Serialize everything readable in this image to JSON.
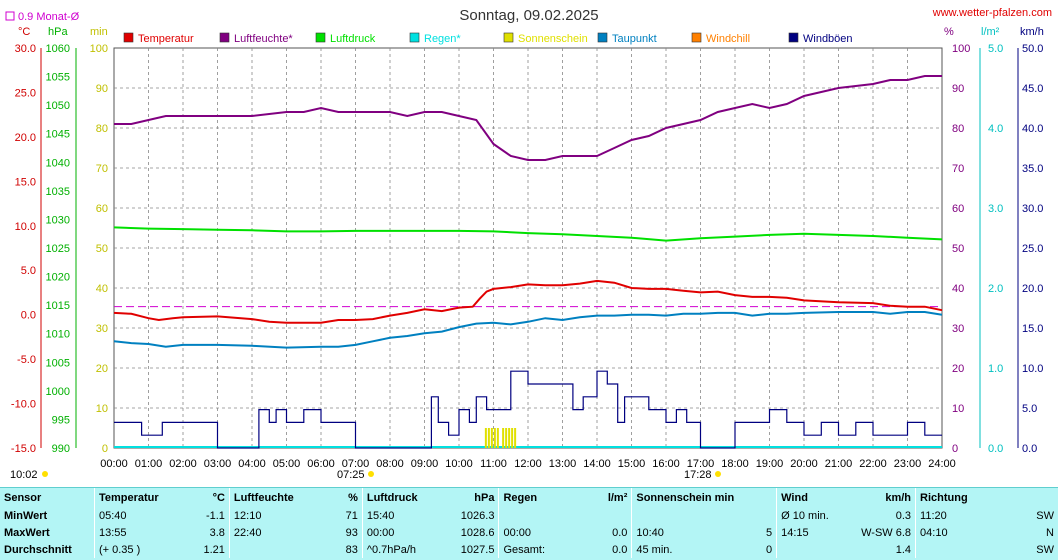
{
  "header": {
    "title": "Sonntag, 09.02.2025",
    "site": "www.wetter-pfalzen.com",
    "avg_marker": "0.9 Monat-Ø"
  },
  "axes": {
    "units": {
      "temp": "°C",
      "press": "hPa",
      "min": "min",
      "pct": "%",
      "rain": "l/m²",
      "wind": "km/h"
    },
    "temp_ticks": [
      "30.0",
      "25.0",
      "20.0",
      "15.0",
      "10.0",
      "5.0",
      "0.0",
      "-5.0",
      "-10.0",
      "-15.0"
    ],
    "press_ticks": [
      "1060",
      "1055",
      "1050",
      "1045",
      "1040",
      "1035",
      "1030",
      "1025",
      "1020",
      "1015",
      "1010",
      "1005",
      "1000",
      "995",
      "990"
    ],
    "min_ticks": [
      "100",
      "90",
      "80",
      "70",
      "60",
      "50",
      "40",
      "30",
      "20",
      "10",
      "0"
    ],
    "pct_ticks": [
      "100",
      "90",
      "80",
      "70",
      "60",
      "50",
      "40",
      "30",
      "20",
      "10",
      "0"
    ],
    "rain_ticks": [
      "5.0",
      "4.0",
      "3.0",
      "2.0",
      "1.0",
      "0.0"
    ],
    "wind_ticks": [
      "50.0",
      "45.0",
      "40.0",
      "35.0",
      "30.0",
      "25.0",
      "20.0",
      "15.0",
      "10.0",
      "5.0",
      "0.0"
    ],
    "x_ticks": [
      "00:00",
      "01:00",
      "02:00",
      "03:00",
      "04:00",
      "05:00",
      "06:00",
      "07:00",
      "08:00",
      "09:00",
      "10:00",
      "11:00",
      "12:00",
      "13:00",
      "14:00",
      "15:00",
      "16:00",
      "17:00",
      "18:00",
      "19:00",
      "20:00",
      "21:00",
      "22:00",
      "23:00",
      "24:00"
    ]
  },
  "legend": [
    {
      "label": "Temperatur",
      "color": "#e00000"
    },
    {
      "label": "Luftfeuchte*",
      "color": "#800080"
    },
    {
      "label": "Luftdruck",
      "color": "#00e000"
    },
    {
      "label": "Regen*",
      "color": "#00e0e0"
    },
    {
      "label": "Sonnenschein",
      "color": "#e0e000"
    },
    {
      "label": "Taupunkt",
      "color": "#0080c0"
    },
    {
      "label": "Windchill",
      "color": "#ff8000"
    },
    {
      "label": "Windböen",
      "color": "#000080"
    }
  ],
  "sun_markers": {
    "moon_time": "10:02",
    "sunrise": "07:25",
    "sunset": "17:28"
  },
  "chart_data": {
    "type": "line",
    "title": "Sonntag, 09.02.2025",
    "x_unit": "hour of day",
    "xlim": [
      0,
      24
    ],
    "temp_ylim": [
      -15,
      30
    ],
    "pct_ylim": [
      0,
      100
    ],
    "month_avg_temp": 0.9,
    "series": [
      {
        "name": "Temperatur",
        "axis": "°C",
        "x": [
          0,
          0.5,
          1,
          1.3,
          1.7,
          2,
          3,
          4,
          4.5,
          5,
          6,
          6.5,
          7,
          7.5,
          8,
          8.5,
          9,
          9.5,
          10,
          10.4,
          10.6,
          10.8,
          11,
          11.5,
          12,
          12.5,
          13,
          13.5,
          14,
          14.5,
          15,
          15.5,
          16,
          16.5,
          17,
          17.5,
          18,
          18.5,
          19,
          19.5,
          20,
          21,
          22,
          22.5,
          23,
          23.5,
          24
        ],
        "y": [
          0.2,
          0.1,
          -0.4,
          -0.6,
          -0.4,
          -0.3,
          -0.2,
          -0.5,
          -0.8,
          -0.9,
          -0.9,
          -0.6,
          -0.6,
          -0.5,
          -0.1,
          0.2,
          0.6,
          0.4,
          0.8,
          0.9,
          1.8,
          2.6,
          2.9,
          3.1,
          3.4,
          3.3,
          3.3,
          3.5,
          3.8,
          3.6,
          3.0,
          2.9,
          2.9,
          2.7,
          2.5,
          2.6,
          2.2,
          2.0,
          2.0,
          1.9,
          1.6,
          1.4,
          1.3,
          1.0,
          0.9,
          0.9,
          0.5
        ]
      },
      {
        "name": "Luftfeuchte*",
        "axis": "%",
        "x": [
          0,
          0.5,
          1,
          1.5,
          2,
          3,
          3.5,
          4,
          5,
          5.5,
          6,
          6.5,
          7,
          7.5,
          8,
          8.5,
          9,
          9.5,
          10,
          10.5,
          11,
          11.5,
          12,
          12.5,
          13,
          13.5,
          14,
          14.5,
          15,
          15.5,
          16,
          16.5,
          17,
          17.5,
          18,
          18.5,
          19,
          19.5,
          20,
          21,
          22,
          22.5,
          23,
          23.5,
          24
        ],
        "y": [
          81,
          81,
          82,
          83,
          83,
          83,
          83,
          83,
          84,
          84,
          85,
          84,
          84,
          84,
          84,
          83,
          84,
          84,
          83,
          82,
          76,
          73,
          72,
          72,
          73,
          73,
          73,
          75,
          77,
          78,
          80,
          81,
          82,
          84,
          85,
          86,
          85,
          86,
          88,
          90,
          91,
          92,
          92,
          93,
          93
        ]
      },
      {
        "name": "Luftdruck",
        "axis": "hPa",
        "x": [
          0,
          1,
          2,
          3,
          4,
          5,
          6,
          7,
          8,
          9,
          10,
          11,
          12,
          13,
          14,
          15,
          16,
          17,
          18,
          19,
          20,
          21,
          22,
          23,
          24
        ],
        "y": [
          1028.6,
          1028.4,
          1028.3,
          1028.2,
          1028.1,
          1027.9,
          1027.9,
          1028.0,
          1028.0,
          1028.0,
          1028.0,
          1027.9,
          1027.6,
          1027.4,
          1027.1,
          1026.8,
          1026.3,
          1026.7,
          1027.0,
          1027.3,
          1027.5,
          1027.3,
          1027.1,
          1026.8,
          1026.5
        ]
      },
      {
        "name": "Taupunkt",
        "axis": "°C",
        "x": [
          0,
          0.5,
          1,
          1.5,
          2,
          3,
          4,
          5,
          6,
          6.5,
          7,
          7.5,
          8,
          8.5,
          9,
          9.5,
          10,
          10.5,
          11,
          11.5,
          12,
          12.5,
          13,
          13.5,
          14,
          14.5,
          15,
          15.5,
          16,
          16.5,
          17,
          17.5,
          18,
          18.5,
          19,
          19.5,
          20,
          21,
          22,
          22.5,
          23,
          23.5,
          24
        ],
        "y": [
          -3.0,
          -3.2,
          -3.3,
          -3.6,
          -3.4,
          -3.4,
          -3.5,
          -3.7,
          -3.6,
          -3.6,
          -3.4,
          -3.0,
          -2.6,
          -2.4,
          -2.1,
          -1.9,
          -1.4,
          -1.0,
          -0.9,
          -1.1,
          -0.8,
          -0.4,
          -0.6,
          -0.3,
          -0.1,
          -0.1,
          0.0,
          0.0,
          -0.1,
          0.1,
          0.1,
          0.2,
          0.2,
          -0.1,
          0.1,
          0.1,
          0.2,
          0.3,
          0.3,
          0.1,
          0.3,
          0.3,
          0.0
        ]
      },
      {
        "name": "Windböen",
        "axis": "km/h",
        "x": [
          0,
          0.7,
          0.8,
          1.4,
          2,
          2.5,
          3,
          4,
          4.2,
          4.5,
          4.7,
          5,
          5.5,
          6,
          6.7,
          7,
          8,
          9,
          9.2,
          9.4,
          9.7,
          10,
          10.3,
          10.5,
          10.8,
          11,
          11.3,
          11.5,
          12,
          12.5,
          13,
          13.3,
          13.6,
          14,
          14.3,
          14.6,
          14.8,
          15,
          15.5,
          16,
          16.3,
          16.6,
          17,
          17.6,
          18,
          18.5,
          19,
          19.5,
          20,
          20.5,
          21,
          21.5,
          22,
          22.5,
          23,
          23.5,
          24
        ],
        "y": [
          3.2,
          3.2,
          1.6,
          3.2,
          3.2,
          3.2,
          0,
          0,
          4.8,
          3.2,
          4.8,
          3.2,
          4.8,
          3.2,
          3.2,
          0,
          0,
          0,
          6.4,
          3.2,
          1.6,
          4.8,
          3.2,
          6.4,
          4.8,
          4.8,
          4.8,
          9.6,
          8,
          8,
          8,
          4.8,
          6.4,
          9.6,
          8,
          3.2,
          6.4,
          6.4,
          4.8,
          3.2,
          4.8,
          3.2,
          0,
          0,
          3.2,
          3.2,
          4.8,
          3.2,
          1.6,
          3.2,
          1.6,
          3.2,
          1.6,
          1.6,
          3.2,
          1.6,
          1.6
        ]
      },
      {
        "name": "Sonnenschein",
        "axis": "min",
        "x": [
          10.75,
          11.25
        ],
        "y": [
          5,
          5
        ]
      }
    ]
  },
  "stats": {
    "headers": [
      {
        "label": "Sensor",
        "unit": ""
      },
      {
        "label": "Temperatur",
        "unit": "°C"
      },
      {
        "label": "Luftfeuchte",
        "unit": "%"
      },
      {
        "label": "Luftdruck",
        "unit": "hPa"
      },
      {
        "label": "Regen",
        "unit": "l/m²"
      },
      {
        "label": "Sonnenschein min",
        "unit": ""
      },
      {
        "label": "Wind",
        "unit": "km/h"
      },
      {
        "label": "Richtung",
        "unit": ""
      }
    ],
    "rows": [
      {
        "label": "MinWert",
        "cells": [
          [
            "05:40",
            "-1.1"
          ],
          [
            "12:10",
            "71"
          ],
          [
            "15:40",
            "1026.3"
          ],
          [
            "",
            ""
          ],
          [
            "",
            ""
          ],
          [
            "Ø 10 min.",
            "0.3"
          ],
          [
            "11:20",
            "SW"
          ]
        ]
      },
      {
        "label": "MaxWert",
        "cells": [
          [
            "13:55",
            "3.8"
          ],
          [
            "22:40",
            "93"
          ],
          [
            "00:00",
            "1028.6"
          ],
          [
            "00:00",
            "0.0"
          ],
          [
            "10:40",
            "5"
          ],
          [
            "14:15",
            "W-SW 6.8"
          ],
          [
            "04:10",
            "N"
          ]
        ]
      },
      {
        "label": "Durchschnitt",
        "cells": [
          [
            "(+ 0.35 )",
            "1.21"
          ],
          [
            "",
            "83"
          ],
          [
            "^0.7hPa/h",
            "1027.5"
          ],
          [
            "Gesamt:",
            "0.0"
          ],
          [
            "45 min.",
            "0"
          ],
          [
            "",
            "1.4"
          ],
          [
            "",
            "SW"
          ]
        ]
      }
    ]
  }
}
